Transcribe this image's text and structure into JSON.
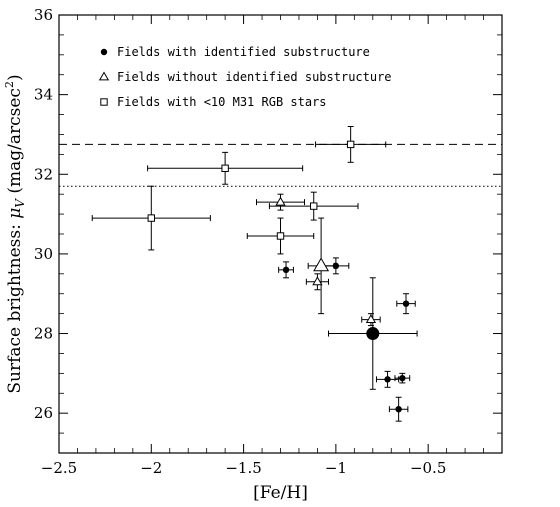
{
  "chart_data": {
    "type": "scatter",
    "title": "",
    "xlabel": "[Fe/H]",
    "ylabel": {
      "main": "Surface brightness: ",
      "mu": "μ",
      "sub": "V",
      "unit_pre": " (mag/arcsec",
      "unit_sup": "2",
      "unit_post": ")"
    },
    "xlim": [
      -2.5,
      -0.1
    ],
    "ylim": [
      25,
      36
    ],
    "xticks": [
      -2.5,
      -2,
      -1.5,
      -1,
      -0.5
    ],
    "xtick_labels": [
      "−2.5",
      "−2",
      "−1.5",
      "−1",
      "−0.5"
    ],
    "yticks": [
      26,
      28,
      30,
      32,
      34,
      36
    ],
    "ytick_labels": [
      "26",
      "28",
      "30",
      "32",
      "34",
      "36"
    ],
    "legend_position": "top-left",
    "legend": [
      {
        "marker": "filled-circle",
        "label": "Fields with identified substructure"
      },
      {
        "marker": "open-triangle",
        "label": "Fields without identified substructure"
      },
      {
        "marker": "open-square",
        "label": "Fields with <10 M31 RGB stars"
      }
    ],
    "reference_lines": [
      {
        "y": 32.75,
        "style": "dashed"
      },
      {
        "y": 31.7,
        "style": "dotted"
      }
    ],
    "series": [
      {
        "marker": "filled-circle",
        "points": [
          {
            "x": -1.27,
            "y": 29.6,
            "xerr": 0.04,
            "yerr": 0.2,
            "size": "small"
          },
          {
            "x": -1.0,
            "y": 29.7,
            "xerr": 0.07,
            "yerr": 0.2,
            "size": "small"
          },
          {
            "x": -0.8,
            "y": 28.0,
            "xerr": 0.24,
            "yerr": 1.4,
            "size": "large"
          },
          {
            "x": -0.62,
            "y": 28.75,
            "xerr": 0.05,
            "yerr": 0.25,
            "size": "small"
          },
          {
            "x": -0.72,
            "y": 26.85,
            "xerr": 0.06,
            "yerr": 0.2,
            "size": "small"
          },
          {
            "x": -0.64,
            "y": 26.88,
            "xerr": 0.04,
            "yerr": 0.12,
            "size": "small"
          },
          {
            "x": -0.66,
            "y": 26.1,
            "xerr": 0.05,
            "yerr": 0.3,
            "size": "small"
          }
        ]
      },
      {
        "marker": "open-triangle",
        "points": [
          {
            "x": -1.3,
            "y": 31.3,
            "xerr": 0.13,
            "yerr": 0.2,
            "size": "small"
          },
          {
            "x": -1.08,
            "y": 29.7,
            "xerr": 0.07,
            "yerr": 1.2,
            "size": "large"
          },
          {
            "x": -1.1,
            "y": 29.3,
            "xerr": 0.06,
            "yerr": 0.2,
            "size": "small"
          },
          {
            "x": -0.81,
            "y": 28.35,
            "xerr": 0.05,
            "yerr": 0.15,
            "size": "small"
          }
        ]
      },
      {
        "marker": "open-square",
        "points": [
          {
            "x": -0.92,
            "y": 32.75,
            "xerr": 0.19,
            "yerr": 0.45,
            "size": "small"
          },
          {
            "x": -1.6,
            "y": 32.15,
            "xerr": 0.42,
            "yerr": 0.4,
            "size": "small"
          },
          {
            "x": -2.0,
            "y": 30.9,
            "xerr": 0.32,
            "yerr": 0.8,
            "size": "small"
          },
          {
            "x": -1.12,
            "y": 31.2,
            "xerr": 0.24,
            "yerr": 0.35,
            "size": "small"
          },
          {
            "x": -1.3,
            "y": 30.45,
            "xerr": 0.18,
            "yerr": 0.45,
            "size": "small"
          }
        ]
      }
    ]
  }
}
